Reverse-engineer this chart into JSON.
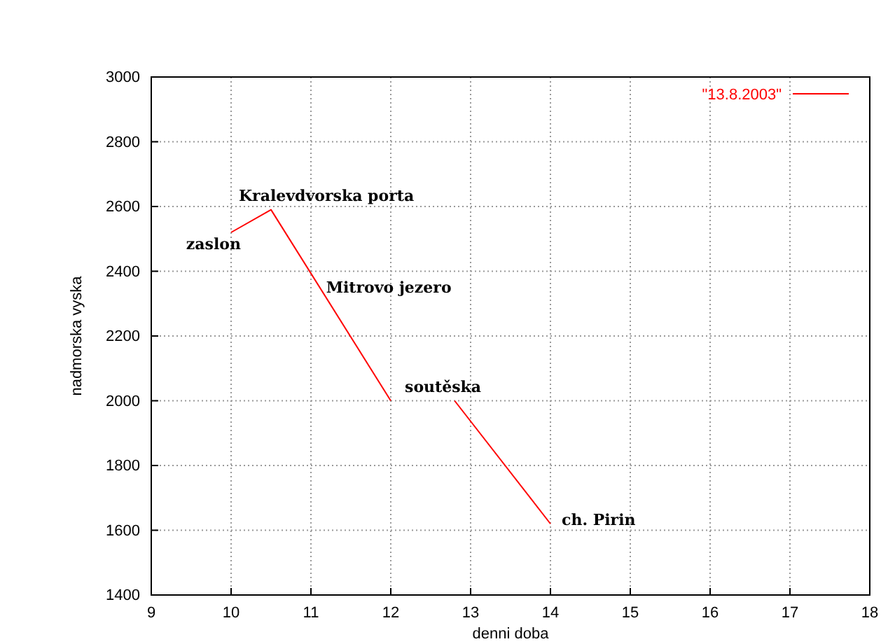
{
  "chart_data": {
    "type": "line",
    "xlabel": "denni doba",
    "ylabel": "nadmorska vyska",
    "x": [
      10,
      10.5,
      12,
      12.4,
      12.8,
      14
    ],
    "series": [
      {
        "name": "\"13.8.2003\"",
        "color": "#ff0000",
        "values": [
          2520,
          2590,
          2000,
          null,
          2000,
          1620
        ]
      }
    ],
    "xlim": [
      9,
      18
    ],
    "xticks": [
      9,
      10,
      11,
      12,
      13,
      14,
      15,
      16,
      17,
      18
    ],
    "ylim": [
      1400,
      3000
    ],
    "yticks": [
      1400,
      1600,
      1800,
      2000,
      2200,
      2400,
      2600,
      2800,
      3000
    ],
    "grid": true,
    "legend": "top right",
    "marker": "none",
    "line_style": "solid",
    "annotations": [
      {
        "text": "zaslon",
        "x": 10,
        "y": 2520
      },
      {
        "text": "Kralevdvorska porta",
        "x": 10.5,
        "y": 2590
      },
      {
        "text": "Mitrovo jezero",
        "x": 11.19,
        "y": 2350
      },
      {
        "text": "soutěska",
        "x": 12,
        "y": 2000
      },
      {
        "text": "ch. Pirin",
        "x": 14,
        "y": 1620
      }
    ]
  }
}
